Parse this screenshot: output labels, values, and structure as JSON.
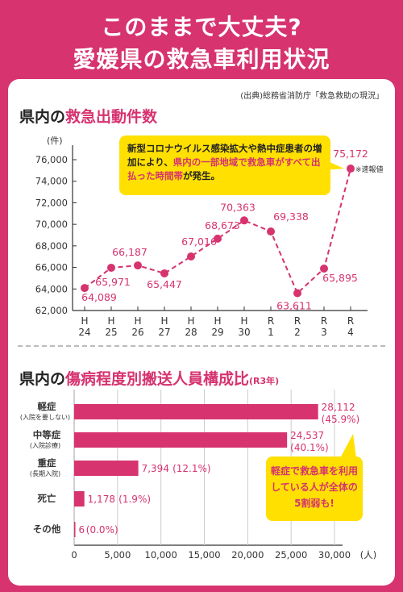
{
  "header": {
    "title_line1": "このままで大丈夫?",
    "title_line2": "愛媛県の救急車利用状況"
  },
  "source": "(出典)総務省消防庁「救急救助の現況」",
  "section1": {
    "title_pre": "県内の",
    "title_hl": "救急出動件数"
  },
  "section2": {
    "title_pre": "県内の",
    "title_hl": "傷病程度別搬送人員構成比",
    "title_suffix": "(R3年)"
  },
  "note1": {
    "pre": "新型コロナウイルス感染拡大や熱中症患者の増加により、",
    "hl": "県内の一部地域で救急車がすべて出払った時間帯",
    "post": "が発生。"
  },
  "note2": {
    "text": "軽症で救急車を利用している人が全体の5割弱も!"
  },
  "colors": {
    "accent": "#d6336f",
    "callout": "#ffe000",
    "axis": "#333333"
  },
  "chart_data": [
    {
      "type": "line",
      "ylabel": "(件)",
      "ylim": [
        62000,
        76000
      ],
      "yticks": [
        "62,000",
        "64,000",
        "66,000",
        "68,000",
        "70,000",
        "72,000",
        "74,000",
        "76,000"
      ],
      "categories": [
        {
          "era": "H",
          "year": "24"
        },
        {
          "era": "H",
          "year": "25"
        },
        {
          "era": "H",
          "year": "26"
        },
        {
          "era": "H",
          "year": "27"
        },
        {
          "era": "H",
          "year": "28"
        },
        {
          "era": "H",
          "year": "29"
        },
        {
          "era": "H",
          "year": "30"
        },
        {
          "era": "R",
          "year": "1"
        },
        {
          "era": "R",
          "year": "2"
        },
        {
          "era": "R",
          "year": "3"
        },
        {
          "era": "R",
          "year": "4"
        }
      ],
      "values": [
        64089,
        65971,
        66187,
        65447,
        67016,
        68673,
        70363,
        69338,
        63611,
        65895,
        75172
      ],
      "labels": [
        "64,089",
        "65,971",
        "66,187",
        "65,447",
        "67,016",
        "68,673",
        "70,363",
        "69,338",
        "63,611",
        "65,895",
        "75,172"
      ],
      "annotation": "※速報値",
      "line_style": "dashed"
    },
    {
      "type": "bar",
      "orientation": "horizontal",
      "xlabel": "(人)",
      "xlim": [
        0,
        30000
      ],
      "xticks": [
        "0",
        "5,000",
        "10,000",
        "15,000",
        "20,000",
        "25,000",
        "30,000"
      ],
      "categories": [
        {
          "name": "軽症",
          "sub": "(入院を要しない)",
          "value": 28112,
          "value_label": "28,112",
          "pct_label": "(45.9%)"
        },
        {
          "name": "中等症",
          "sub": "(入院診療)",
          "value": 24537,
          "value_label": "24,537",
          "pct_label": "(40.1%)"
        },
        {
          "name": "重症",
          "sub": "(長期入院)",
          "value": 7394,
          "value_label": "7,394",
          "pct_label": "(12.1%)"
        },
        {
          "name": "死亡",
          "sub": "",
          "value": 1178,
          "value_label": "1,178",
          "pct_label": "(1.9%)"
        },
        {
          "name": "その他",
          "sub": "",
          "value": 6,
          "value_label": "6",
          "pct_label": "(0.0%)"
        }
      ]
    }
  ]
}
